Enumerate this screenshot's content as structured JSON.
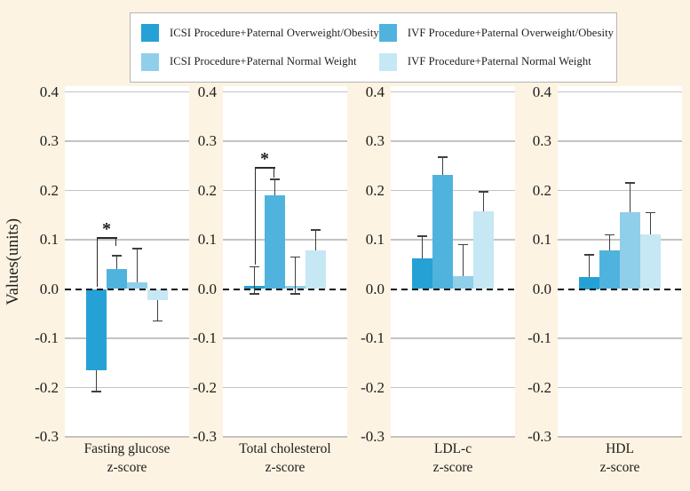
{
  "figure": {
    "background_color": "#FCF3E2",
    "panel_background_color": "#FFFFFF",
    "gridline_color": "#C3C3C3",
    "zero_line_style": "dashed-black",
    "error_bar_color": "#3F3F3F"
  },
  "legend": {
    "items": [
      {
        "label": "ICSI Procedure+Paternal Overweight/Obesity",
        "color": "#25A1D6",
        "column": 1,
        "row": 1
      },
      {
        "label": "ICSI Procedure+Paternal Normal Weight",
        "color": "#8FCFEA",
        "column": 1,
        "row": 2
      },
      {
        "label": "IVF Procedure+Paternal Overweight/Obesity",
        "color": "#4FB3DE",
        "column": 2,
        "row": 1
      },
      {
        "label": "IVF Procedure+Paternal Normal Weight",
        "color": "#C6E7F4",
        "column": 2,
        "row": 2
      }
    ]
  },
  "chart_data": {
    "type": "bar",
    "title": "",
    "xlabel": "",
    "ylabel": "Values(units)",
    "ylim": [
      -0.3,
      0.4
    ],
    "yticks": [
      0.4,
      0.3,
      0.2,
      0.1,
      0.0,
      -0.1,
      -0.2,
      -0.3
    ],
    "grid": true,
    "zero_line": "dashed",
    "legend_position": "top",
    "error_bars": "shown",
    "series": [
      {
        "name": "ICSI Procedure+Paternal Overweight/Obesity",
        "color": "#25A1D6"
      },
      {
        "name": "IVF Procedure+Paternal Overweight/Obesity",
        "color": "#4FB3DE"
      },
      {
        "name": "ICSI Procedure+Paternal Normal Weight",
        "color": "#8FCFEA"
      },
      {
        "name": "IVF Procedure+Paternal Normal Weight",
        "color": "#C6E7F4"
      }
    ],
    "panels": [
      {
        "category": [
          "Fasting glucose",
          "z-score"
        ],
        "bars": [
          {
            "value": -0.165,
            "whisker_lo": -0.208,
            "whisker_hi": -0.165,
            "cap_lo": true,
            "cap_hi": false
          },
          {
            "value": 0.04,
            "whisker_lo": 0.04,
            "whisker_hi": 0.068,
            "cap_lo": false,
            "cap_hi": true
          },
          {
            "value": 0.013,
            "whisker_lo": 0.013,
            "whisker_hi": 0.082,
            "cap_lo": false,
            "cap_hi": true
          },
          {
            "value": -0.022,
            "whisker_lo": -0.065,
            "whisker_hi": -0.022,
            "cap_lo": true,
            "cap_hi": false
          }
        ],
        "significance": {
          "label": "*",
          "bar_a": 0,
          "bar_b": 1,
          "top": 0.105,
          "leg_a_bottom": 0.005,
          "leg_b_bottom": 0.088
        }
      },
      {
        "category": [
          "Total cholesterol",
          "z-score"
        ],
        "bars": [
          {
            "value": 0.006,
            "whisker_lo": -0.01,
            "whisker_hi": 0.045,
            "cap_lo": true,
            "cap_hi": true
          },
          {
            "value": 0.19,
            "whisker_lo": 0.19,
            "whisker_hi": 0.222,
            "cap_lo": false,
            "cap_hi": true
          },
          {
            "value": 0.006,
            "whisker_lo": -0.01,
            "whisker_hi": 0.065,
            "cap_lo": true,
            "cap_hi": true
          },
          {
            "value": 0.078,
            "whisker_lo": 0.078,
            "whisker_hi": 0.12,
            "cap_lo": false,
            "cap_hi": true
          }
        ],
        "significance": {
          "label": "*",
          "bar_a": 0,
          "bar_b": 1,
          "top": 0.247,
          "leg_a_bottom": 0.05,
          "leg_b_bottom": 0.226
        }
      },
      {
        "category": [
          "LDL-c",
          "z-score"
        ],
        "bars": [
          {
            "value": 0.062,
            "whisker_lo": 0.062,
            "whisker_hi": 0.107,
            "cap_lo": false,
            "cap_hi": true
          },
          {
            "value": 0.232,
            "whisker_lo": 0.232,
            "whisker_hi": 0.267,
            "cap_lo": false,
            "cap_hi": true
          },
          {
            "value": 0.026,
            "whisker_lo": 0.026,
            "whisker_hi": 0.09,
            "cap_lo": false,
            "cap_hi": true
          },
          {
            "value": 0.157,
            "whisker_lo": 0.157,
            "whisker_hi": 0.197,
            "cap_lo": false,
            "cap_hi": true
          }
        ],
        "significance": null
      },
      {
        "category": [
          "HDL",
          "z-score"
        ],
        "bars": [
          {
            "value": 0.025,
            "whisker_lo": 0.025,
            "whisker_hi": 0.07,
            "cap_lo": false,
            "cap_hi": true
          },
          {
            "value": 0.078,
            "whisker_lo": 0.078,
            "whisker_hi": 0.11,
            "cap_lo": false,
            "cap_hi": true
          },
          {
            "value": 0.155,
            "whisker_lo": 0.155,
            "whisker_hi": 0.215,
            "cap_lo": false,
            "cap_hi": true
          },
          {
            "value": 0.11,
            "whisker_lo": 0.11,
            "whisker_hi": 0.155,
            "cap_lo": false,
            "cap_hi": true
          }
        ],
        "significance": null
      }
    ]
  }
}
